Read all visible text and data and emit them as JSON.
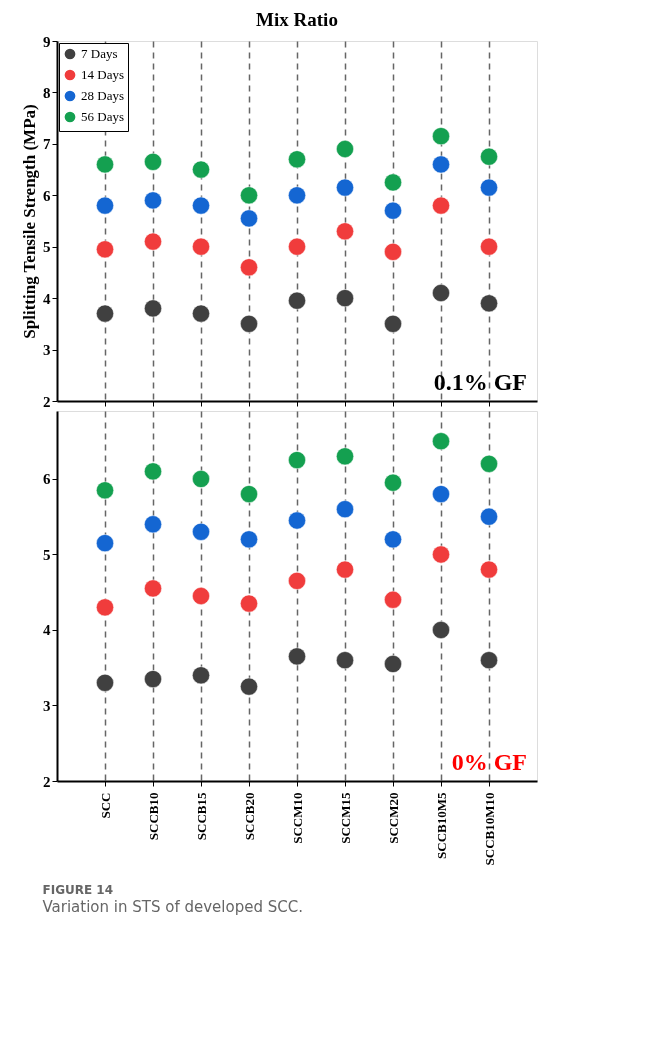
{
  "chart_data": [
    {
      "type": "scatter",
      "title": "Mix Ratio",
      "ylabel": "Splitting Tensile Strength (MPa)",
      "categories": [
        "SCC",
        "SCCB10",
        "SCCB15",
        "SCCB20",
        "SCCM10",
        "SCCM15",
        "SCCM20",
        "SCCB10M5",
        "SCCB10M10"
      ],
      "series": [
        {
          "name": "7 Days",
          "color": "#404040",
          "values": [
            3.7,
            3.8,
            3.7,
            3.5,
            3.95,
            4.0,
            3.5,
            4.1,
            3.9
          ]
        },
        {
          "name": "14 Days",
          "color": "#f03c3c",
          "values": [
            4.95,
            5.1,
            5.0,
            4.6,
            5.0,
            5.3,
            4.9,
            5.8,
            5.0
          ]
        },
        {
          "name": "28 Days",
          "color": "#1466d2",
          "values": [
            5.8,
            5.9,
            5.8,
            5.55,
            6.0,
            6.15,
            5.7,
            6.6,
            6.15
          ]
        },
        {
          "name": "56 Days",
          "color": "#14a050",
          "values": [
            6.6,
            6.65,
            6.5,
            6.0,
            6.7,
            6.9,
            6.25,
            7.15,
            6.75
          ]
        }
      ],
      "ylim": [
        2,
        9
      ],
      "yticks": [
        2,
        3,
        4,
        5,
        6,
        7,
        8,
        9
      ],
      "grid": "x",
      "legend": "top left",
      "marker": "circle",
      "tick_labels": "y",
      "annotations": [
        "0.1% GF"
      ]
    },
    {
      "type": "scatter",
      "categories": [
        "SCC",
        "SCCB10",
        "SCCB15",
        "SCCB20",
        "SCCM10",
        "SCCM15",
        "SCCM20",
        "SCCB10M5",
        "SCCB10M10"
      ],
      "series": [
        {
          "color": "#404040",
          "values": [
            3.3,
            3.35,
            3.4,
            3.25,
            3.65,
            3.6,
            3.55,
            4.0,
            3.6
          ]
        },
        {
          "color": "#f03c3c",
          "values": [
            4.3,
            4.55,
            4.45,
            4.35,
            4.65,
            4.8,
            4.4,
            5.0,
            4.8
          ]
        },
        {
          "color": "#1466d2",
          "values": [
            5.15,
            5.4,
            5.3,
            5.2,
            5.45,
            5.6,
            5.2,
            5.8,
            5.5
          ]
        },
        {
          "color": "#14a050",
          "values": [
            5.85,
            6.1,
            6.0,
            5.8,
            6.25,
            6.3,
            5.95,
            6.5,
            6.2
          ]
        }
      ],
      "ylim": [
        2,
        6.9
      ],
      "yticks": [
        2,
        3,
        4,
        5,
        6
      ],
      "grid": "x",
      "marker": "circle",
      "annotations": [
        "0% GF",
        "FIGURE 14",
        "Variation in STS of developed SCC."
      ]
    }
  ]
}
